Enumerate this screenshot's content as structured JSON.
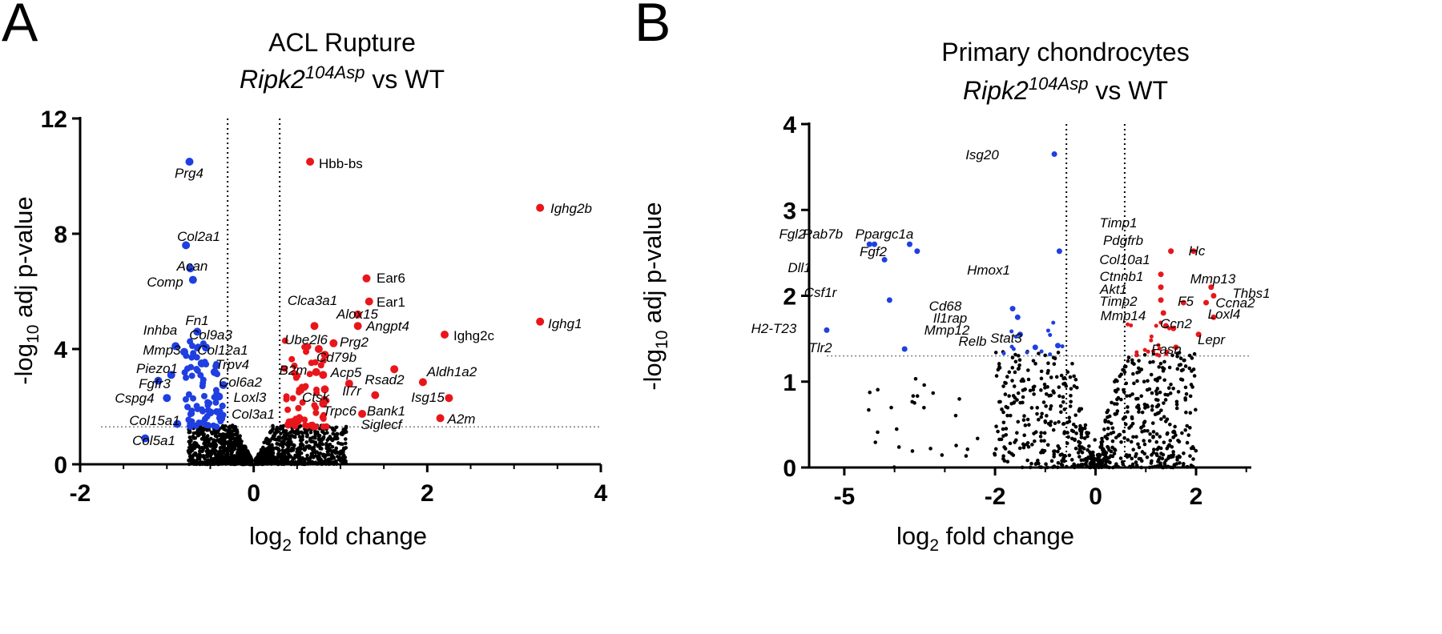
{
  "panels": [
    {
      "letter": "A",
      "title_line1": "ACL Rupture",
      "title_gene": "Ripk2",
      "title_sup": "104Asp",
      "title_rest": " vs WT",
      "xlabel_pre": "log",
      "xlabel_sub": "2",
      "xlabel_post": " fold change",
      "ylabel_pre": "-log",
      "ylabel_sub": "10",
      "ylabel_post": " adj p-value",
      "x_ticks": [
        "-2",
        "0",
        "2",
        "4"
      ],
      "y_ticks": [
        "0",
        "4",
        "8",
        "12"
      ],
      "colors": {
        "down": "#1f3fe0",
        "up": "#e8161b",
        "ns": "#000000",
        "threshold": "#808080"
      }
    },
    {
      "letter": "B",
      "title_line1": "Primary chondrocytes",
      "title_gene": "Ripk2",
      "title_sup": "104Asp",
      "title_rest": " vs WT",
      "xlabel_pre": "log",
      "xlabel_sub": "2",
      "xlabel_post": " fold change",
      "ylabel_pre": "-log",
      "ylabel_sub": "10",
      "ylabel_post": " adj p-value",
      "x_ticks": [
        "-5",
        "-2",
        "0",
        "2"
      ],
      "y_ticks": [
        "0",
        "1",
        "2",
        "3",
        "4"
      ],
      "colors": {
        "down": "#1f3fe0",
        "up": "#e8161b",
        "ns": "#000000",
        "threshold": "#808080"
      }
    }
  ],
  "chart_data": [
    {
      "type": "scatter",
      "panel": "A",
      "title": "ACL Rupture Ripk2104Asp vs WT",
      "xlabel": "log2 fold change",
      "ylabel": "-log10 adj p-value",
      "xlim": [
        -2,
        4
      ],
      "ylim": [
        0,
        12
      ],
      "fc_thresholds": [
        -0.3,
        0.3
      ],
      "p_threshold": 1.3,
      "grid": false,
      "labeled_points": [
        {
          "gene": "Prg4",
          "x": -0.74,
          "y": 10.5,
          "group": "down"
        },
        {
          "gene": "Col2a1",
          "x": -0.78,
          "y": 7.6,
          "group": "down"
        },
        {
          "gene": "Acan",
          "x": -0.73,
          "y": 6.8,
          "group": "down"
        },
        {
          "gene": "Comp",
          "x": -0.7,
          "y": 6.4,
          "group": "down"
        },
        {
          "gene": "Fn1",
          "x": -0.65,
          "y": 4.6,
          "group": "down"
        },
        {
          "gene": "Inhba",
          "x": -0.9,
          "y": 4.1,
          "group": "down"
        },
        {
          "gene": "Col9a3",
          "x": -0.55,
          "y": 4.05,
          "group": "down"
        },
        {
          "gene": "Mmp3",
          "x": -0.8,
          "y": 3.9,
          "group": "down"
        },
        {
          "gene": "Col12a1",
          "x": -0.6,
          "y": 3.5,
          "group": "down"
        },
        {
          "gene": "Trpv4",
          "x": -0.45,
          "y": 3.2,
          "group": "down"
        },
        {
          "gene": "Piezo1",
          "x": -0.95,
          "y": 3.1,
          "group": "down"
        },
        {
          "gene": "Fgfr3",
          "x": -1.1,
          "y": 2.9,
          "group": "down"
        },
        {
          "gene": "Col6a2",
          "x": -0.35,
          "y": 2.75,
          "group": "down"
        },
        {
          "gene": "Cspg4",
          "x": -1.0,
          "y": 2.3,
          "group": "down"
        },
        {
          "gene": "Loxl3",
          "x": -0.4,
          "y": 2.35,
          "group": "down"
        },
        {
          "gene": "Col3a1",
          "x": -0.5,
          "y": 1.8,
          "group": "down"
        },
        {
          "gene": "Col15a1",
          "x": -0.88,
          "y": 1.4,
          "group": "down"
        },
        {
          "gene": "Col5a1",
          "x": -1.25,
          "y": 0.9,
          "group": "down"
        },
        {
          "gene": "Hbb-bs",
          "x": 0.65,
          "y": 10.5,
          "group": "up"
        },
        {
          "gene": "Ighg2b",
          "x": 3.3,
          "y": 8.9,
          "group": "up"
        },
        {
          "gene": "Ear6",
          "x": 1.3,
          "y": 6.45,
          "group": "up"
        },
        {
          "gene": "Ear1",
          "x": 1.33,
          "y": 5.65,
          "group": "up"
        },
        {
          "gene": "Clca3a1",
          "x": 0.7,
          "y": 4.8,
          "group": "up"
        },
        {
          "gene": "Alox15",
          "x": 1.2,
          "y": 5.2,
          "group": "up"
        },
        {
          "gene": "Angpt4",
          "x": 1.2,
          "y": 4.8,
          "group": "up"
        },
        {
          "gene": "Ighg1",
          "x": 3.3,
          "y": 4.95,
          "group": "up"
        },
        {
          "gene": "Ighg2c",
          "x": 2.2,
          "y": 4.5,
          "group": "up"
        },
        {
          "gene": "Ube2l6",
          "x": 0.75,
          "y": 4.0,
          "group": "up"
        },
        {
          "gene": "Prg2",
          "x": 0.92,
          "y": 4.2,
          "group": "up"
        },
        {
          "gene": "Cd79b",
          "x": 0.82,
          "y": 3.8,
          "group": "up"
        },
        {
          "gene": "B2m",
          "x": 0.72,
          "y": 3.2,
          "group": "up"
        },
        {
          "gene": "Acp5",
          "x": 0.8,
          "y": 3.1,
          "group": "up"
        },
        {
          "gene": "Aldh1a2",
          "x": 1.95,
          "y": 2.85,
          "group": "up"
        },
        {
          "gene": "Rsad2",
          "x": 1.62,
          "y": 3.3,
          "group": "up"
        },
        {
          "gene": "Il7r",
          "x": 1.1,
          "y": 2.8,
          "group": "up"
        },
        {
          "gene": "Ctsk",
          "x": 0.82,
          "y": 2.6,
          "group": "up"
        },
        {
          "gene": "Isg15",
          "x": 2.25,
          "y": 2.3,
          "group": "up"
        },
        {
          "gene": "Bank1",
          "x": 1.4,
          "y": 2.4,
          "group": "up"
        },
        {
          "gene": "Trpc6",
          "x": 0.8,
          "y": 2.1,
          "group": "up"
        },
        {
          "gene": "Siglecf",
          "x": 1.25,
          "y": 1.75,
          "group": "up"
        },
        {
          "gene": "A2m",
          "x": 2.15,
          "y": 1.6,
          "group": "up"
        }
      ]
    },
    {
      "type": "scatter",
      "panel": "B",
      "title": "Primary chondrocytes Ripk2104Asp vs WT",
      "xlabel": "log2 fold change",
      "ylabel": "-log10 adj p-value",
      "xlim": [
        -5.7,
        3.1
      ],
      "ylim": [
        0,
        4
      ],
      "fc_thresholds": [
        -0.58,
        0.58
      ],
      "p_threshold": 1.3,
      "grid": false,
      "labeled_points": [
        {
          "gene": "Isg20",
          "x": -0.82,
          "y": 3.65,
          "group": "down"
        },
        {
          "gene": "Fgl2",
          "x": -4.5,
          "y": 2.6,
          "group": "down"
        },
        {
          "gene": "Rab7b",
          "x": -4.4,
          "y": 2.6,
          "group": "down"
        },
        {
          "gene": "Ppargc1a",
          "x": -3.7,
          "y": 2.6,
          "group": "down"
        },
        {
          "gene": "Fgf2",
          "x": -3.55,
          "y": 2.52,
          "group": "down"
        },
        {
          "gene": "Dll1",
          "x": -4.2,
          "y": 2.42,
          "group": "down"
        },
        {
          "gene": "Hmox1",
          "x": -0.72,
          "y": 2.52,
          "group": "down"
        },
        {
          "gene": "Csf1r",
          "x": -4.1,
          "y": 1.95,
          "group": "down"
        },
        {
          "gene": "Cd68",
          "x": -1.65,
          "y": 1.85,
          "group": "down"
        },
        {
          "gene": "Il1rap",
          "x": -1.55,
          "y": 1.75,
          "group": "down"
        },
        {
          "gene": "Mmp12",
          "x": -1.5,
          "y": 1.55,
          "group": "down"
        },
        {
          "gene": "H2-T23",
          "x": -5.35,
          "y": 1.6,
          "group": "down"
        },
        {
          "gene": "Tlr2",
          "x": -3.8,
          "y": 1.38,
          "group": "down"
        },
        {
          "gene": "Relb",
          "x": -1.2,
          "y": 1.4,
          "group": "down"
        },
        {
          "gene": "Stat3",
          "x": -0.75,
          "y": 1.42,
          "group": "down"
        },
        {
          "gene": "Timp1",
          "x": 1.5,
          "y": 2.52,
          "group": "up"
        },
        {
          "gene": "Pdgfrb",
          "x": 1.5,
          "y": 2.52,
          "group": "up"
        },
        {
          "gene": "Hc",
          "x": 1.95,
          "y": 2.52,
          "group": "up"
        },
        {
          "gene": "Col10a1",
          "x": 1.3,
          "y": 2.25,
          "group": "up"
        },
        {
          "gene": "Ctnnb1",
          "x": 1.3,
          "y": 2.1,
          "group": "up"
        },
        {
          "gene": "Mmp13",
          "x": 2.3,
          "y": 2.1,
          "group": "up"
        },
        {
          "gene": "Akt1",
          "x": 1.3,
          "y": 1.95,
          "group": "up"
        },
        {
          "gene": "Thbs1",
          "x": 2.35,
          "y": 2.0,
          "group": "up"
        },
        {
          "gene": "F5",
          "x": 1.75,
          "y": 1.92,
          "group": "up"
        },
        {
          "gene": "Ccna2",
          "x": 2.2,
          "y": 1.92,
          "group": "up"
        },
        {
          "gene": "Timp2",
          "x": 1.35,
          "y": 1.8,
          "group": "up"
        },
        {
          "gene": "Loxl4",
          "x": 2.35,
          "y": 1.75,
          "group": "up"
        },
        {
          "gene": "Mmp14",
          "x": 1.4,
          "y": 1.65,
          "group": "up"
        },
        {
          "gene": "Ccn2",
          "x": 1.55,
          "y": 1.62,
          "group": "up"
        },
        {
          "gene": "Lepr",
          "x": 2.05,
          "y": 1.55,
          "group": "up"
        },
        {
          "gene": "Fasn",
          "x": 1.6,
          "y": 1.4,
          "group": "up"
        }
      ]
    }
  ]
}
